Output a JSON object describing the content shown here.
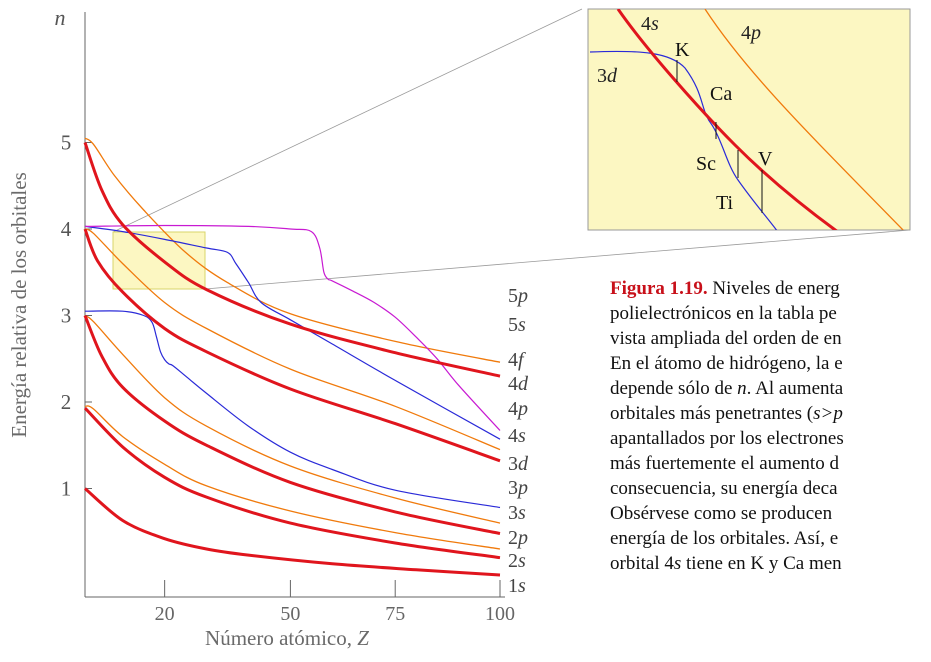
{
  "chart_data": {
    "type": "line",
    "ylabel": "Energía relativa de los orbitales",
    "xlabel_main": "Número atómico, ",
    "xlabel_var": "Z",
    "y_axis_symbol": "n",
    "xlim": [
      1,
      100
    ],
    "x_ticks": [
      "20",
      "50",
      "75",
      "100"
    ],
    "x_tick_values": [
      20,
      50,
      75,
      100
    ],
    "y_ticks": [
      "1",
      "2",
      "3",
      "4",
      "5"
    ],
    "y_tick_values": [
      1,
      2,
      3,
      4,
      5
    ],
    "colors": {
      "s": "#e0151d",
      "p": "#f07a0c",
      "d": "#2a2ad8",
      "f": "#c81ad2",
      "box": "#fcf7c2",
      "box_edge": "#d8d46a"
    },
    "series": [
      {
        "n": "1",
        "l": "s",
        "kind": "s",
        "x": [
          1,
          10,
          20,
          30,
          40,
          60,
          80,
          100
        ],
        "y": [
          1.0,
          0.63,
          0.42,
          0.3,
          0.23,
          0.13,
          0.06,
          0.0
        ]
      },
      {
        "n": "2",
        "l": "s",
        "kind": "s",
        "x": [
          1,
          10,
          20,
          30,
          50,
          75,
          100
        ],
        "y": [
          1.93,
          1.48,
          1.13,
          0.9,
          0.6,
          0.37,
          0.2
        ]
      },
      {
        "n": "2",
        "l": "p",
        "kind": "p",
        "x": [
          1,
          3,
          10,
          20,
          30,
          50,
          75,
          100
        ],
        "y": [
          1.95,
          1.92,
          1.6,
          1.28,
          1.03,
          0.74,
          0.49,
          0.3
        ]
      },
      {
        "n": "3",
        "l": "s",
        "kind": "s",
        "x": [
          1,
          5,
          10,
          20,
          30,
          50,
          75,
          100
        ],
        "y": [
          3.0,
          2.53,
          2.17,
          1.78,
          1.5,
          1.07,
          0.73,
          0.48
        ]
      },
      {
        "n": "3",
        "l": "p",
        "kind": "p",
        "x": [
          1,
          3,
          10,
          20,
          30,
          50,
          75,
          100
        ],
        "y": [
          3.0,
          2.93,
          2.55,
          2.05,
          1.72,
          1.26,
          0.89,
          0.6
        ]
      },
      {
        "n": "3",
        "l": "d",
        "kind": "d",
        "x": [
          1,
          10,
          15,
          17,
          18,
          19,
          20,
          21,
          22,
          25,
          30,
          40,
          50,
          60,
          75,
          100
        ],
        "y": [
          3.05,
          3.05,
          3.0,
          2.92,
          2.76,
          2.58,
          2.49,
          2.44,
          2.42,
          2.3,
          2.1,
          1.72,
          1.42,
          1.22,
          0.98,
          0.78
        ]
      },
      {
        "n": "4",
        "l": "s",
        "kind": "s",
        "x": [
          1,
          4,
          10,
          20,
          30,
          50,
          75,
          100
        ],
        "y": [
          4.0,
          3.63,
          3.27,
          2.85,
          2.58,
          2.15,
          1.75,
          1.32
        ]
      },
      {
        "n": "4",
        "l": "p",
        "kind": "p",
        "x": [
          1,
          3,
          10,
          20,
          30,
          50,
          75,
          100
        ],
        "y": [
          4.0,
          3.95,
          3.6,
          3.15,
          2.85,
          2.38,
          1.95,
          1.45
        ]
      },
      {
        "n": "4",
        "l": "d",
        "kind": "d",
        "x": [
          1,
          10,
          20,
          30,
          35,
          37,
          40,
          43,
          50,
          60,
          75,
          100
        ],
        "y": [
          4.03,
          3.97,
          3.88,
          3.78,
          3.73,
          3.6,
          3.38,
          3.15,
          2.95,
          2.67,
          2.25,
          1.57
        ]
      },
      {
        "n": "4",
        "l": "f",
        "kind": "f",
        "x": [
          1,
          20,
          40,
          50,
          55,
          57,
          58,
          59,
          60,
          65,
          70,
          75,
          80,
          85,
          90,
          100
        ],
        "y": [
          4.03,
          4.04,
          4.03,
          4.0,
          3.97,
          3.78,
          3.5,
          3.42,
          3.4,
          3.28,
          3.15,
          2.98,
          2.75,
          2.5,
          2.2,
          1.67
        ]
      },
      {
        "n": "5",
        "l": "s",
        "kind": "s",
        "x": [
          1,
          5,
          10,
          20,
          30,
          50,
          75,
          100
        ],
        "y": [
          5.0,
          4.45,
          4.05,
          3.62,
          3.3,
          2.9,
          2.57,
          2.3
        ]
      },
      {
        "n": "5",
        "l": "p",
        "kind": "p",
        "x": [
          1,
          3,
          8,
          15,
          25,
          35,
          50,
          75,
          100
        ],
        "y": [
          5.05,
          4.98,
          4.62,
          4.22,
          3.73,
          3.38,
          3.02,
          2.7,
          2.46
        ]
      }
    ],
    "right_labels": [
      {
        "n": "5",
        "l": "p"
      },
      {
        "n": "5",
        "l": "s"
      },
      {
        "n": "4",
        "l": "f"
      },
      {
        "n": "4",
        "l": "d"
      },
      {
        "n": "4",
        "l": "p"
      },
      {
        "n": "4",
        "l": "s"
      },
      {
        "n": "3",
        "l": "d"
      },
      {
        "n": "3",
        "l": "p"
      },
      {
        "n": "3",
        "l": "s"
      },
      {
        "n": "2",
        "l": "p"
      },
      {
        "n": "2",
        "l": "s"
      },
      {
        "n": "1",
        "l": "s"
      }
    ],
    "inset": {
      "labels": {
        "s4": {
          "n": "4",
          "l": "s"
        },
        "p4": {
          "n": "4",
          "l": "p"
        },
        "d3": {
          "n": "3",
          "l": "d"
        }
      },
      "elements": [
        "K",
        "Ca",
        "Sc",
        "Ti",
        "V"
      ]
    }
  },
  "caption": {
    "label": "Figura 1.19.",
    "lines": [
      " Niveles de energ",
      "polielectrónicos en la tabla pe",
      "vista ampliada del orden de en",
      "En el átomo de hidrógeno, la e",
      "depende sólo de ",
      "orbitales más penetrantes (",
      "apantallados por los electrones",
      "más fuertemente el aumento d",
      "consecuencia, su energía deca",
      "Obsérvese como se producen",
      "energía de los orbitales. Así, e",
      "orbital 4",
      " tiene en K y Ca men"
    ],
    "italic_n": "n",
    "after_n": ". Al aumenta",
    "italic_order": "s>p",
    "italic_s": "s"
  }
}
